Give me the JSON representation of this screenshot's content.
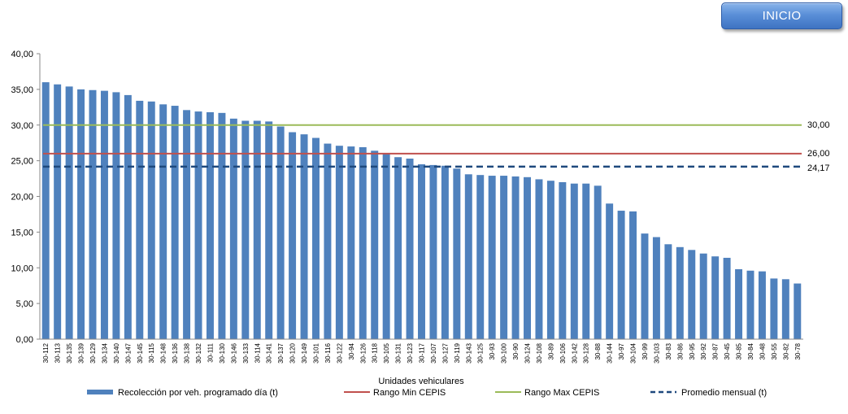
{
  "header": {
    "start_button_label": "INICIO"
  },
  "chart_data": {
    "type": "bar",
    "xlabel": "Unidades vehiculares",
    "ylabel": "",
    "ylim": [
      0,
      40
    ],
    "yticks": [
      "0,00",
      "5,00",
      "10,00",
      "15,00",
      "20,00",
      "25,00",
      "30,00",
      "35,00",
      "40,00"
    ],
    "grid": false,
    "legend_position": "bottom",
    "categories": [
      "30-112",
      "30-113",
      "30-135",
      "30-139",
      "30-129",
      "30-134",
      "30-140",
      "30-147",
      "30-145",
      "30-115",
      "30-148",
      "30-136",
      "30-138",
      "30-132",
      "30-111",
      "30-130",
      "30-146",
      "30-133",
      "30-114",
      "30-141",
      "30-137",
      "30-120",
      "30-149",
      "30-101",
      "30-116",
      "30-122",
      "30-94",
      "30-126",
      "30-118",
      "30-105",
      "30-131",
      "30-123",
      "30-117",
      "30-107",
      "30-127",
      "30-119",
      "30-143",
      "30-125",
      "30-93",
      "30-100",
      "30-90",
      "30-124",
      "30-108",
      "30-89",
      "30-106",
      "30-142",
      "30-128",
      "30-88",
      "30-144",
      "30-97",
      "30-104",
      "30-99",
      "30-103",
      "30-83",
      "30-86",
      "30-95",
      "30-92",
      "30-87",
      "30-45",
      "30-85",
      "30-84",
      "30-48",
      "30-55",
      "30-82",
      "30-78"
    ],
    "series": [
      {
        "name": "Recolección por veh. programado día (t)",
        "color": "#4f81bd",
        "values": [
          36.0,
          35.7,
          35.4,
          35.0,
          34.9,
          34.8,
          34.6,
          34.2,
          33.4,
          33.3,
          32.9,
          32.7,
          32.1,
          31.9,
          31.8,
          31.7,
          30.9,
          30.6,
          30.6,
          30.5,
          29.8,
          29.0,
          28.7,
          28.2,
          27.4,
          27.1,
          27.0,
          26.9,
          26.4,
          26.0,
          25.5,
          25.3,
          24.5,
          24.4,
          24.3,
          23.9,
          23.1,
          23.0,
          22.9,
          22.9,
          22.8,
          22.7,
          22.4,
          22.2,
          22.0,
          21.8,
          21.8,
          21.5,
          19.0,
          18.0,
          17.9,
          14.8,
          14.3,
          13.3,
          12.9,
          12.5,
          12.0,
          11.6,
          11.4,
          9.8,
          9.6,
          9.5,
          8.5,
          8.4,
          7.8
        ]
      }
    ],
    "reference_lines": [
      {
        "name": "Rango Max CEPIS",
        "value": 30.0,
        "label": "30,00",
        "color": "#9bbb59",
        "style": "solid"
      },
      {
        "name": "Rango Min CEPIS",
        "value": 26.0,
        "label": "26,00",
        "color": "#c0504d",
        "style": "solid"
      },
      {
        "name": "Promedio mensual (t)",
        "value": 24.17,
        "label": "24,17",
        "color": "#1f497d",
        "style": "dashed"
      }
    ],
    "legend": [
      {
        "label": "Recolección por veh. programado día (t)",
        "kind": "bar",
        "color": "#4f81bd"
      },
      {
        "label": "Rango Min CEPIS",
        "kind": "line",
        "color": "#c0504d"
      },
      {
        "label": "Rango Max CEPIS",
        "kind": "line",
        "color": "#9bbb59"
      },
      {
        "label": "Promedio mensual (t)",
        "kind": "dashed",
        "color": "#1f497d"
      }
    ]
  }
}
